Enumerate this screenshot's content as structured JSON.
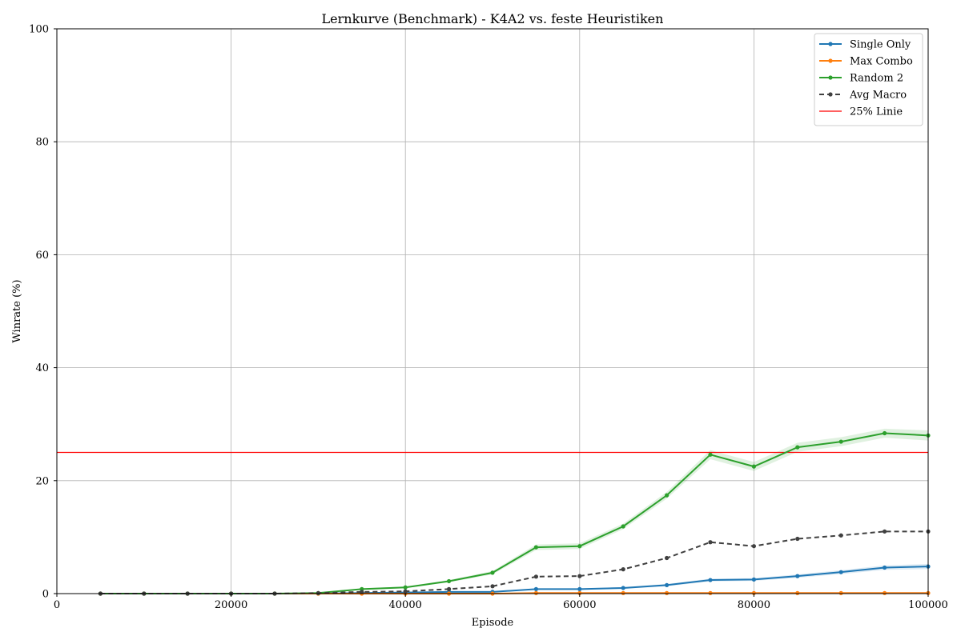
{
  "chart_data": {
    "type": "line",
    "title": "Lernkurve (Benchmark) - K4A2 vs. feste Heuristiken",
    "xlabel": "Episode",
    "ylabel": "Winrate (%)",
    "xlim": [
      0,
      100000
    ],
    "ylim": [
      0,
      100
    ],
    "grid": true,
    "legend_position": "top-right",
    "x_ticks": [
      0,
      20000,
      40000,
      60000,
      80000,
      100000
    ],
    "y_ticks": [
      0,
      20,
      40,
      60,
      80,
      100
    ],
    "x_tick_labels": [
      "0",
      "20000",
      "40000",
      "60000",
      "80000",
      "100000"
    ],
    "y_tick_labels": [
      "0",
      "20",
      "40",
      "60",
      "80",
      "100"
    ],
    "x": [
      5000,
      10000,
      15000,
      20000,
      25000,
      30000,
      35000,
      40000,
      45000,
      50000,
      55000,
      60000,
      65000,
      70000,
      75000,
      80000,
      85000,
      90000,
      95000,
      100000
    ],
    "series": [
      {
        "name": "Single Only",
        "color": "#1f77b4",
        "style": "solid",
        "marker": true,
        "values": [
          0,
          0,
          0,
          0,
          0,
          0,
          0.1,
          0.2,
          0.3,
          0.3,
          0.8,
          0.8,
          1.0,
          1.5,
          2.4,
          2.5,
          3.1,
          3.8,
          4.6,
          4.8
        ],
        "band": [
          0,
          0,
          0,
          0,
          0,
          0,
          0.05,
          0.05,
          0.05,
          0.05,
          0.1,
          0.1,
          0.15,
          0.2,
          0.25,
          0.25,
          0.3,
          0.35,
          0.4,
          0.45
        ]
      },
      {
        "name": "Max Combo",
        "color": "#ff7f0e",
        "style": "solid",
        "marker": true,
        "values": [
          0,
          0,
          0,
          0,
          0,
          0,
          0,
          0,
          0,
          0,
          0.1,
          0.1,
          0.1,
          0.1,
          0.1,
          0.1,
          0.1,
          0.1,
          0.1,
          0.1
        ],
        "band": [
          0,
          0,
          0,
          0,
          0,
          0,
          0,
          0,
          0,
          0,
          0,
          0,
          0,
          0,
          0,
          0,
          0,
          0,
          0,
          0
        ]
      },
      {
        "name": "Random 2",
        "color": "#2ca02c",
        "style": "solid",
        "marker": true,
        "values": [
          0,
          0,
          0,
          0,
          0,
          0.1,
          0.8,
          1.1,
          2.2,
          3.7,
          8.2,
          8.4,
          11.9,
          17.4,
          24.6,
          22.5,
          25.9,
          26.9,
          28.4,
          28.0
        ],
        "band": [
          0,
          0,
          0,
          0,
          0,
          0,
          0.1,
          0.15,
          0.2,
          0.3,
          0.5,
          0.5,
          0.5,
          0.6,
          0.8,
          0.8,
          0.8,
          0.8,
          0.8,
          0.9
        ]
      },
      {
        "name": "Avg Macro",
        "color": "#404040",
        "style": "dashed",
        "marker": true,
        "values": [
          0,
          0,
          0,
          0,
          0,
          0.1,
          0.3,
          0.4,
          0.8,
          1.3,
          3.0,
          3.1,
          4.3,
          6.3,
          9.1,
          8.4,
          9.7,
          10.3,
          11.0,
          11.0
        ],
        "band": [
          0,
          0,
          0,
          0,
          0,
          0,
          0,
          0,
          0,
          0,
          0,
          0,
          0,
          0,
          0,
          0,
          0,
          0,
          0,
          0
        ]
      }
    ],
    "reference_line": {
      "name": "25% Linie",
      "y": 25,
      "color": "#ff0000"
    }
  }
}
